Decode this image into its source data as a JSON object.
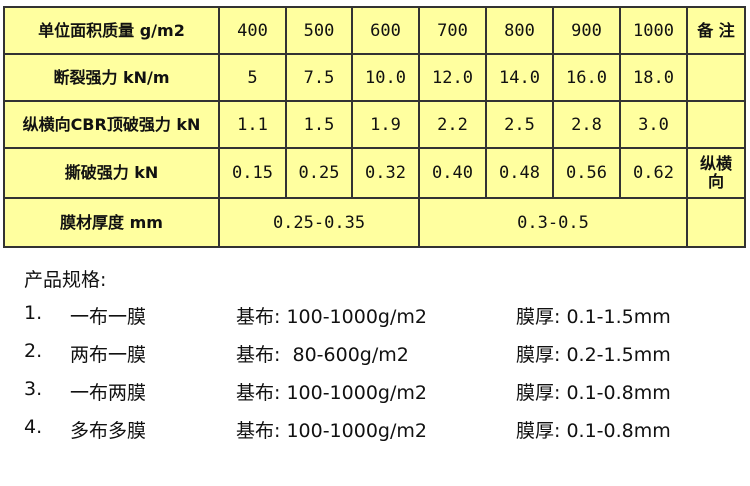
{
  "table": {
    "header": {
      "label": "单位面积质量 g/m2",
      "values": [
        "400",
        "500",
        "600",
        "700",
        "800",
        "900",
        "1000"
      ],
      "note": "备 注"
    },
    "rows": [
      {
        "label": "断裂强力 kN/m",
        "values": [
          "5",
          "7.5",
          "10.0",
          "12.0",
          "14.0",
          "16.0",
          "18.0"
        ],
        "note": ""
      },
      {
        "label": "纵横向CBR顶破强力 kN",
        "values": [
          "1.1",
          "1.5",
          "1.9",
          "2.2",
          "2.5",
          "2.8",
          "3.0"
        ],
        "note": ""
      },
      {
        "label": "撕破强力 kN",
        "values": [
          "0.15",
          "0.25",
          "0.32",
          "0.40",
          "0.48",
          "0.56",
          "0.62"
        ],
        "note": "纵横向"
      }
    ],
    "thickness": {
      "label": "膜材厚度 mm",
      "range1": "0.25-0.35",
      "range2": "0.3-0.5"
    }
  },
  "specs": {
    "title": "产品规格:",
    "items": [
      {
        "num": "1.",
        "name": "一布一膜",
        "base": "基布: 100-1000g/m2",
        "film": "膜厚: 0.1-1.5mm"
      },
      {
        "num": "2.",
        "name": "两布一膜",
        "base": "基布:  80-600g/m2",
        "film": "膜厚: 0.2-1.5mm"
      },
      {
        "num": "3.",
        "name": "一布两膜",
        "base": "基布: 100-1000g/m2",
        "film": "膜厚: 0.1-0.8mm"
      },
      {
        "num": "4.",
        "name": "多布多膜",
        "base": "基布: 100-1000g/m2",
        "film": "膜厚: 0.1-0.8mm"
      }
    ]
  }
}
